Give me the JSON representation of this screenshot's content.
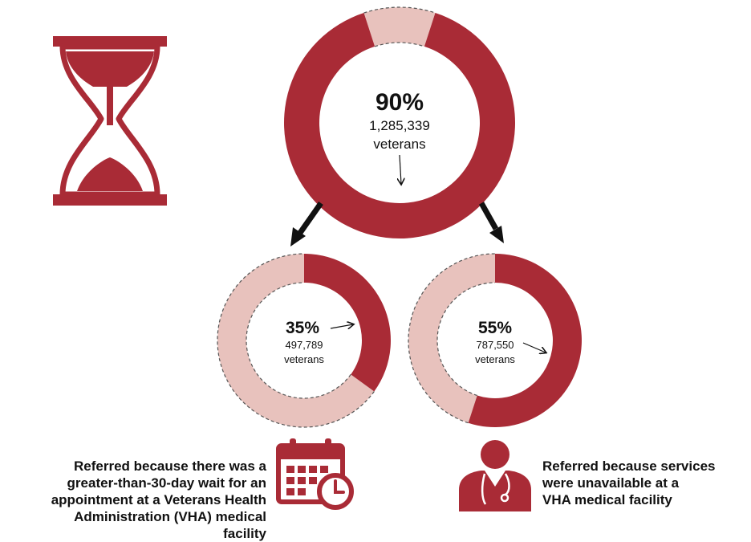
{
  "colors": {
    "dark": "#A92B36",
    "light": "#E8C2BD",
    "text": "#111111"
  },
  "main": {
    "percent_label": "90%",
    "count_label": "1,285,339",
    "unit_label": "veterans",
    "share": 0.9
  },
  "left": {
    "percent_label": "35%",
    "count_label": "497,789",
    "unit_label": "veterans",
    "share": 0.35,
    "caption_lines": [
      "Referred because there was a",
      "greater-than-30-day wait for an",
      "appointment at a Veterans Health",
      "Administration (VHA) medical facility"
    ]
  },
  "right": {
    "percent_label": "55%",
    "count_label": "787,550",
    "unit_label": "veterans",
    "share": 0.55,
    "caption_lines": [
      "Referred because services",
      "were unavailable at a",
      "VHA medical facility"
    ]
  },
  "icons": [
    "hourglass-icon",
    "calendar-clock-icon",
    "doctor-icon"
  ]
}
